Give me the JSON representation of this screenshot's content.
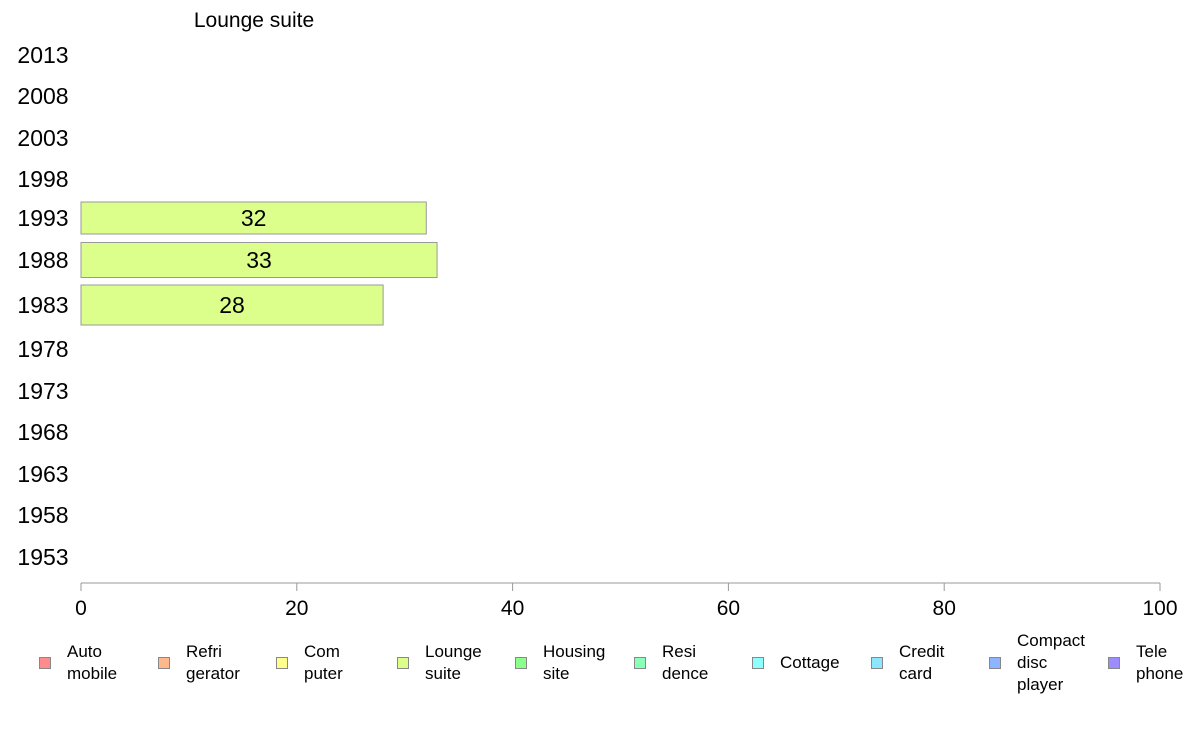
{
  "chart_data": {
    "type": "bar",
    "orientation": "horizontal",
    "title": "Lounge suite",
    "categories": [
      "2013",
      "2008",
      "2003",
      "1998",
      "1993",
      "1988",
      "1983",
      "1978",
      "1973",
      "1968",
      "1963",
      "1958",
      "1953"
    ],
    "series": [
      {
        "name": "Lounge suite",
        "values": [
          null,
          null,
          null,
          null,
          32,
          33,
          28,
          null,
          null,
          null,
          null,
          null,
          null
        ],
        "color": "#dcff8c"
      }
    ],
    "xlim": [
      0,
      100
    ],
    "xticks": [
      "0",
      "20",
      "40",
      "60",
      "80",
      "100"
    ],
    "grid": false,
    "legend_position": "bottom",
    "legend": [
      {
        "label": "Auto\nmobile",
        "color": "#ff8c8c"
      },
      {
        "label": "Refri\ngerator",
        "color": "#ffb88c"
      },
      {
        "label": "Com\nputer",
        "color": "#ffff8c"
      },
      {
        "label": "Lounge\nsuite",
        "color": "#dcff8c"
      },
      {
        "label": "Housing\nsite",
        "color": "#8cff8c"
      },
      {
        "label": "Resi\ndence",
        "color": "#8cffb8"
      },
      {
        "label": "Cottage",
        "color": "#8cffff"
      },
      {
        "label": "Credit\ncard",
        "color": "#8ce6ff"
      },
      {
        "label": "Compact\ndisc\nplayer",
        "color": "#8cb4ff"
      },
      {
        "label": "Tele\nphone",
        "color": "#9c8cff"
      }
    ]
  }
}
